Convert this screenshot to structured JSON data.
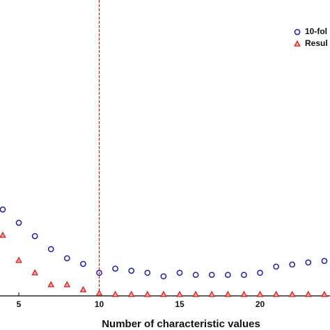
{
  "chart_data": {
    "type": "scatter",
    "xlabel": "Number of characteristic values",
    "x": [
      4,
      5,
      6,
      7,
      8,
      9,
      10,
      11,
      12,
      13,
      14,
      15,
      16,
      17,
      18,
      19,
      20,
      21,
      22,
      23,
      24
    ],
    "series": [
      {
        "name": "10-fol",
        "color": "#1c1ca8",
        "marker": "circle",
        "values": [
          0.292,
          0.247,
          0.202,
          0.158,
          0.127,
          0.108,
          0.078,
          0.092,
          0.085,
          0.078,
          0.066,
          0.078,
          0.071,
          0.071,
          0.071,
          0.071,
          0.078,
          0.099,
          0.106,
          0.113,
          0.118
        ]
      },
      {
        "name": "Resul",
        "color": "#d42020",
        "marker": "triangle",
        "values": [
          0.205,
          0.12,
          0.078,
          0.038,
          0.038,
          0.021,
          0.009,
          0.005,
          0.005,
          0.005,
          0.005,
          0.005,
          0.005,
          0.005,
          0.005,
          0.005,
          0.005,
          0.005,
          0.005,
          0.005,
          0.005
        ]
      }
    ],
    "xlim": [
      3.83,
      24.35
    ],
    "xticks": [
      5,
      10,
      15,
      20
    ],
    "ylim": [
      0,
      1
    ],
    "vline": {
      "x": 10,
      "color": "#c81e1e"
    },
    "legend": "upper right"
  }
}
